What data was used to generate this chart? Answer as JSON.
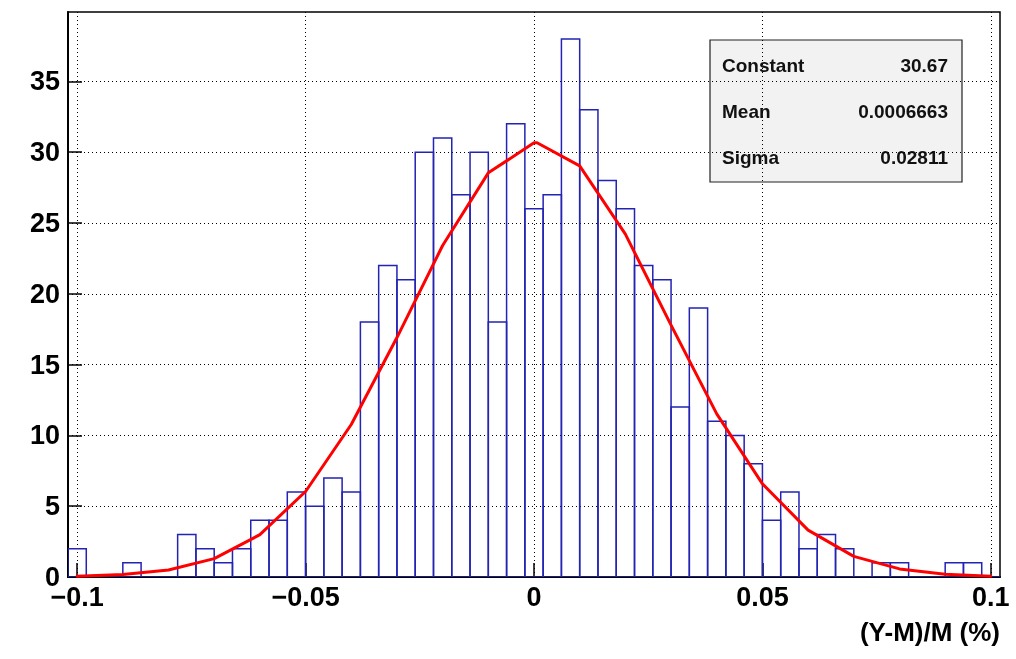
{
  "chart_data": {
    "type": "histogram",
    "xlabel": "(Y-M)/M (%)",
    "bins": [
      -0.102,
      -0.098,
      -0.094,
      -0.09,
      -0.086,
      -0.082,
      -0.078,
      -0.074,
      -0.07,
      -0.066,
      -0.062,
      -0.058,
      -0.054,
      -0.05,
      -0.046,
      -0.042,
      -0.038,
      -0.034,
      -0.03,
      -0.026,
      -0.022,
      -0.018,
      -0.014,
      -0.01,
      -0.006,
      -0.002,
      0.002,
      0.006,
      0.01,
      0.014,
      0.018,
      0.022,
      0.026,
      0.03,
      0.034,
      0.038,
      0.042,
      0.046,
      0.05,
      0.054,
      0.058,
      0.062,
      0.066,
      0.07,
      0.074,
      0.078,
      0.082,
      0.086,
      0.09,
      0.094,
      0.098,
      0.102
    ],
    "values": [
      2,
      0,
      0,
      1,
      0,
      0,
      3,
      2,
      1,
      2,
      4,
      4,
      6,
      5,
      7,
      6,
      18,
      22,
      21,
      30,
      31,
      27,
      30,
      18,
      32,
      26,
      27,
      38,
      33,
      28,
      26,
      22,
      21,
      12,
      19,
      11,
      10,
      8,
      4,
      6,
      2,
      3,
      2,
      0,
      1,
      1,
      0,
      0,
      1,
      1,
      0
    ],
    "color": "#2323b4",
    "series": [
      {
        "type": "line",
        "color": "#ff0000",
        "x": [
          -0.1,
          -0.09,
          -0.08,
          -0.07,
          -0.06,
          -0.05,
          -0.04,
          -0.03,
          -0.02,
          -0.01,
          0,
          0.00067,
          0.01,
          0.02,
          0.03,
          0.04,
          0.05,
          0.06,
          0.07,
          0.08,
          0.09,
          0.1
        ],
        "values": [
          0.05,
          0.17,
          0.5,
          1.3,
          2.99,
          6.04,
          10.77,
          16.91,
          23.41,
          28.54,
          30.66,
          30.67,
          29.03,
          24.21,
          17.79,
          11.52,
          6.58,
          3.31,
          1.46,
          0.57,
          0.2,
          0.06
        ]
      }
    ],
    "xlim": [
      -0.102,
      0.102
    ],
    "xticks": [
      -0.1,
      -0.05,
      0,
      0.05,
      0.1
    ],
    "ylim": [
      0,
      39.9
    ],
    "yticks": [
      0,
      5,
      10,
      15,
      20,
      25,
      30,
      35
    ],
    "grid": true,
    "marker": "none",
    "line_style": "solid",
    "annotations": [
      "Constant",
      "30.67",
      "Mean",
      "0.0006663",
      "Sigma",
      "0.02811"
    ]
  }
}
